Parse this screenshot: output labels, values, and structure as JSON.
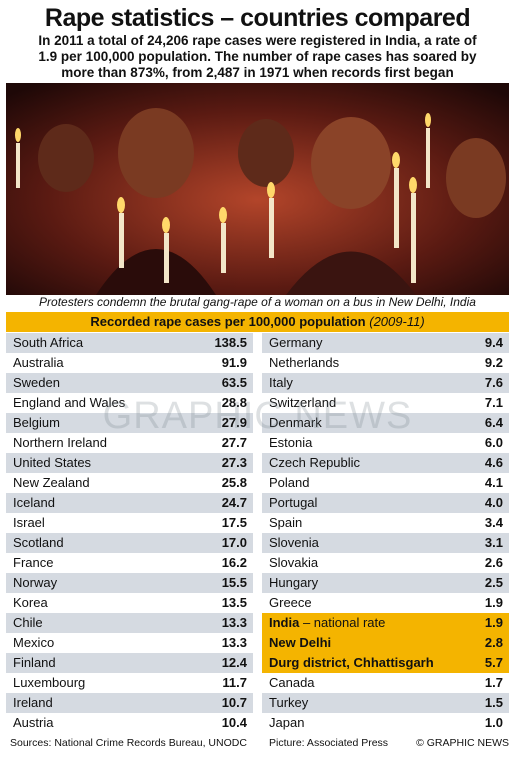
{
  "header": {
    "title": "Rape statistics – countries compared",
    "subtitle_lines": [
      "In 2011 a total of 24,206 rape cases were registered in India, a rate of",
      "1.9 per 100,000 population. The number of rape cases has soared by",
      "more than 873%, from 2,487 in 1971 when records first began"
    ]
  },
  "photo": {
    "caption": "Protesters condemn the brutal gang-rape of a woman on a bus in New Delhi, India"
  },
  "table": {
    "title": "Recorded rape cases per 100,000 population",
    "period": "(2009-11)",
    "left": [
      {
        "name": "South Africa",
        "value": "138.5"
      },
      {
        "name": "Australia",
        "value": "91.9"
      },
      {
        "name": "Sweden",
        "value": "63.5"
      },
      {
        "name": "England and Wales",
        "value": "28.8"
      },
      {
        "name": "Belgium",
        "value": "27.9"
      },
      {
        "name": "Northern Ireland",
        "value": "27.7"
      },
      {
        "name": "United States",
        "value": "27.3"
      },
      {
        "name": "New Zealand",
        "value": "25.8"
      },
      {
        "name": "Iceland",
        "value": "24.7"
      },
      {
        "name": "Israel",
        "value": "17.5"
      },
      {
        "name": "Scotland",
        "value": "17.0"
      },
      {
        "name": "France",
        "value": "16.2"
      },
      {
        "name": "Norway",
        "value": "15.5"
      },
      {
        "name": "Korea",
        "value": "13.5"
      },
      {
        "name": "Chile",
        "value": "13.3"
      },
      {
        "name": "Mexico",
        "value": "13.3"
      },
      {
        "name": "Finland",
        "value": "12.4"
      },
      {
        "name": "Luxembourg",
        "value": "11.7"
      },
      {
        "name": "Ireland",
        "value": "10.7"
      },
      {
        "name": "Austria",
        "value": "10.4"
      }
    ],
    "right": [
      {
        "name": "Germany",
        "value": "9.4"
      },
      {
        "name": "Netherlands",
        "value": "9.2"
      },
      {
        "name": "Italy",
        "value": "7.6"
      },
      {
        "name": "Switzerland",
        "value": "7.1"
      },
      {
        "name": "Denmark",
        "value": "6.4"
      },
      {
        "name": "Estonia",
        "value": "6.0"
      },
      {
        "name": "Czech Republic",
        "value": "4.6"
      },
      {
        "name": "Poland",
        "value": "4.1"
      },
      {
        "name": "Portugal",
        "value": "4.0"
      },
      {
        "name": "Spain",
        "value": "3.4"
      },
      {
        "name": "Slovenia",
        "value": "3.1"
      },
      {
        "name": "Slovakia",
        "value": "2.6"
      },
      {
        "name": "Hungary",
        "value": "2.5"
      },
      {
        "name": "Greece",
        "value": "1.9"
      },
      {
        "name": "India",
        "note": "– national rate",
        "value": "1.9",
        "highlight": true
      },
      {
        "name": "New Delhi",
        "value": "2.8",
        "highlight": true
      },
      {
        "name": "Durg district, Chhattisgarh",
        "value": "5.7",
        "highlight": true
      },
      {
        "name": "Canada",
        "value": "1.7"
      },
      {
        "name": "Turkey",
        "value": "1.5"
      },
      {
        "name": "Japan",
        "value": "1.0"
      }
    ]
  },
  "watermark": "GRAPHIC NEWS",
  "footer": {
    "sources": "Sources: National Crime Records Bureau, UNODC",
    "picture": "Picture: Associated Press",
    "copyright": "© GRAPHIC NEWS"
  }
}
